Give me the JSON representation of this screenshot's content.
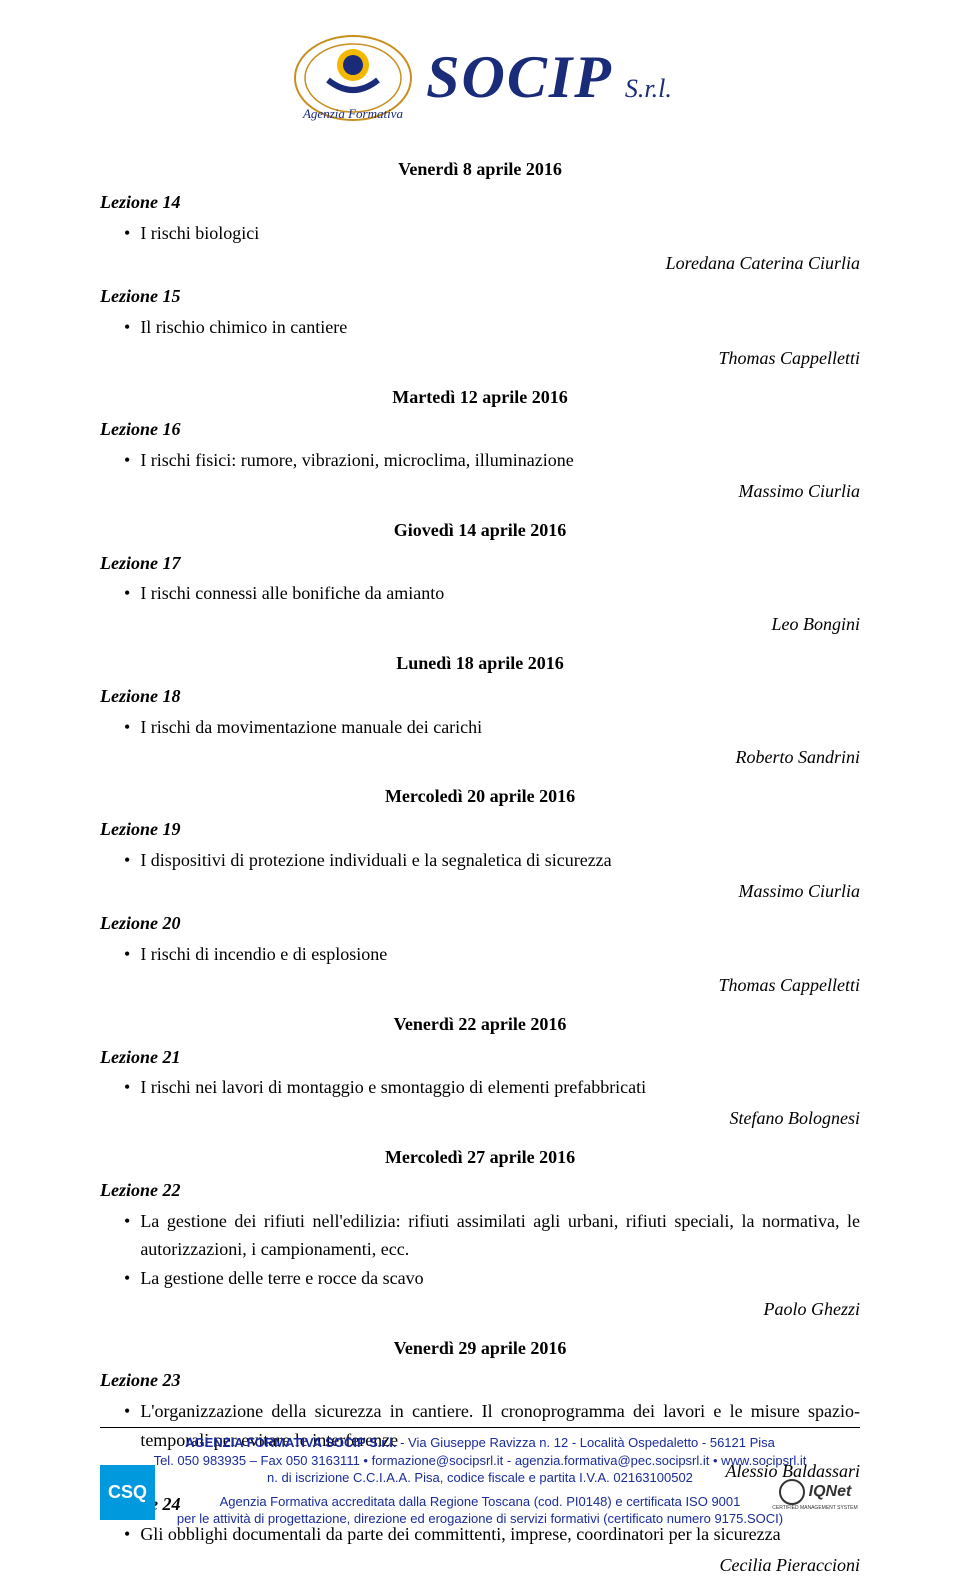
{
  "header": {
    "agency_label": "Agenzia Formativa",
    "company_name": "SOCIP",
    "suffix": "S.r.l."
  },
  "lessons": [
    {
      "date": "Venerdì 8 aprile 2016",
      "lesson_no": "Lezione 14",
      "items": [
        "I rischi biologici"
      ],
      "author": "Loredana Caterina Ciurlia"
    },
    {
      "date": null,
      "lesson_no": "Lezione 15",
      "items": [
        "Il rischio chimico in cantiere"
      ],
      "author": "Thomas Cappelletti"
    },
    {
      "date": "Martedì 12 aprile 2016",
      "lesson_no": "Lezione 16",
      "items": [
        "I rischi fisici: rumore, vibrazioni, microclima, illuminazione"
      ],
      "author": "Massimo Ciurlia"
    },
    {
      "date": "Giovedì 14 aprile 2016",
      "lesson_no": "Lezione 17",
      "items": [
        "I rischi connessi alle bonifiche da amianto"
      ],
      "author": "Leo Bongini"
    },
    {
      "date": "Lunedì 18 aprile 2016",
      "lesson_no": "Lezione 18",
      "items": [
        "I rischi da movimentazione manuale dei carichi"
      ],
      "author": "Roberto Sandrini"
    },
    {
      "date": "Mercoledì 20 aprile 2016",
      "lesson_no": "Lezione 19",
      "items": [
        "I dispositivi di protezione individuali e la segnaletica di sicurezza"
      ],
      "author": "Massimo Ciurlia"
    },
    {
      "date": null,
      "lesson_no": "Lezione 20",
      "items": [
        "I rischi di incendio e di esplosione"
      ],
      "author": "Thomas Cappelletti"
    },
    {
      "date": "Venerdì 22 aprile 2016",
      "lesson_no": "Lezione 21",
      "items": [
        "I rischi nei lavori di montaggio e smontaggio di elementi prefabbricati"
      ],
      "author": "Stefano Bolognesi"
    },
    {
      "date": "Mercoledì 27 aprile 2016",
      "lesson_no": "Lezione 22",
      "items": [
        "La gestione dei rifiuti nell'edilizia: rifiuti assimilati agli urbani, rifiuti speciali, la normativa, le autorizzazioni, i campionamenti, ecc.",
        "La gestione delle terre e rocce da scavo"
      ],
      "author": "Paolo Ghezzi"
    },
    {
      "date": "Venerdì 29 aprile 2016",
      "lesson_no": "Lezione 23",
      "items": [
        "L'organizzazione della sicurezza in cantiere. Il cronoprogramma dei lavori e le misure spazio-temporali per evitare le interferenze"
      ],
      "author": "Alessio Baldassari"
    },
    {
      "date": null,
      "lesson_no": "Lezione 24",
      "items": [
        "Gli obblighi documentali da parte dei committenti, imprese, coordinatori per la sicurezza"
      ],
      "author": "Cecilia Pieraccioni"
    }
  ],
  "footer": {
    "line1_bold": "AGENZIA FORMATIVA SOCIP S.r.l.",
    "line1_rest": " - Via Giuseppe Ravizza n. 12 - Località Ospedaletto - 56121 Pisa",
    "line2": "Tel. 050 983935 – Fax 050 3163111 • formazione@socipsrl.it - agenzia.formativa@pec.socipsrl.it • www.socipsrl.it",
    "line3": "n. di iscrizione C.C.I.A.A. Pisa, codice fiscale e partita I.V.A. 02163100502",
    "line4": "Agenzia Formativa accreditata dalla Regione Toscana (cod. PI0148) e certificata ISO 9001",
    "line5": "per le attività di progettazione, direzione ed erogazione di servizi formativi (certificato numero 9175.SOCI)",
    "csq": "CSQ",
    "iqnet": "IQNet"
  }
}
